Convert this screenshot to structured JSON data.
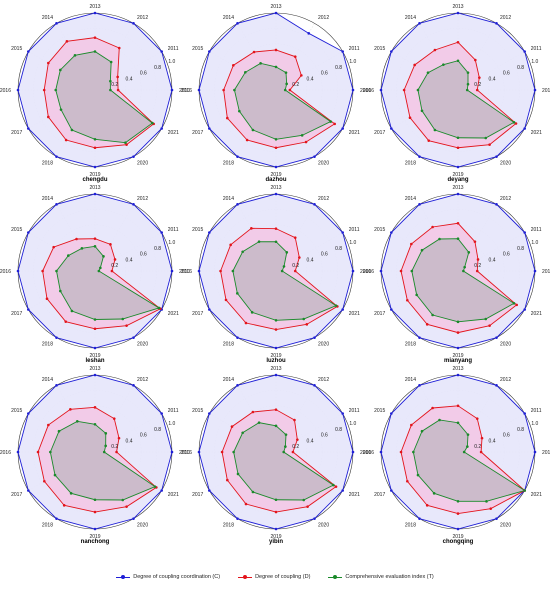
{
  "chart_data": [
    {
      "type": "radar",
      "title": "chengdu",
      "categories": [
        "2010",
        "2011",
        "2012",
        "2013",
        "2014",
        "2015",
        "2016",
        "2017",
        "2018",
        "2019",
        "2020",
        "2021"
      ],
      "rlim": [
        0,
        1.0
      ],
      "rticks": [
        "0.2",
        "0.4",
        "0.6",
        "0.8",
        "1.0"
      ],
      "series": [
        {
          "name": "Degree of coupling coordination (C)",
          "values": [
            1.0,
            1.0,
            1.0,
            1.0,
            1.0,
            1.0,
            1.0,
            1.0,
            1.0,
            1.0,
            1.0,
            1.0
          ]
        },
        {
          "name": "Degree of coupling (D)",
          "values": [
            0.3,
            0.34,
            0.63,
            0.68,
            0.73,
            0.7,
            0.66,
            0.7,
            0.75,
            0.75,
            0.82,
            0.88
          ]
        },
        {
          "name": "Comprehensive evaluation index (T)",
          "values": [
            0.2,
            0.23,
            0.42,
            0.5,
            0.52,
            0.52,
            0.51,
            0.51,
            0.6,
            0.64,
            0.79,
            0.86
          ]
        }
      ]
    },
    {
      "type": "radar",
      "title": "dazhou",
      "categories": [
        "2010",
        "2011",
        "2012",
        "2013",
        "2014",
        "2015",
        "2016",
        "2017",
        "2018",
        "2019",
        "2020",
        "2021"
      ],
      "rlim": [
        0,
        1.0
      ],
      "rticks": [
        "0.2",
        "0.4",
        "0.6",
        "0.8",
        "1.0"
      ],
      "series": [
        {
          "name": "Degree of coupling coordination (C)",
          "values": [
            1.0,
            1.0,
            0.85,
            1.0,
            1.0,
            1.0,
            1.0,
            1.0,
            1.0,
            1.0,
            1.0,
            1.0
          ]
        },
        {
          "name": "Degree of coupling (D)",
          "values": [
            0.18,
            0.38,
            0.5,
            0.52,
            0.57,
            0.64,
            0.68,
            0.73,
            0.75,
            0.75,
            0.78,
            0.88
          ]
        },
        {
          "name": "Comprehensive evaluation index (T)",
          "values": [
            0.12,
            0.16,
            0.26,
            0.3,
            0.4,
            0.46,
            0.54,
            0.55,
            0.6,
            0.64,
            0.68,
            0.82
          ]
        }
      ]
    },
    {
      "type": "radar",
      "title": "deyang",
      "categories": [
        "2010",
        "2011",
        "2012",
        "2013",
        "2014",
        "2015",
        "2016",
        "2017",
        "2018",
        "2019",
        "2020",
        "2021"
      ],
      "rlim": [
        0,
        1.0
      ],
      "rticks": [
        "0.2",
        "0.4",
        "0.6",
        "0.8",
        "1.0"
      ],
      "series": [
        {
          "name": "Degree of coupling coordination (C)",
          "values": [
            1.0,
            1.0,
            1.0,
            1.0,
            1.0,
            1.0,
            1.0,
            1.0,
            1.0,
            1.0,
            1.0,
            1.0
          ]
        },
        {
          "name": "Degree of coupling (D)",
          "values": [
            0.25,
            0.32,
            0.45,
            0.62,
            0.6,
            0.65,
            0.7,
            0.72,
            0.76,
            0.75,
            0.82,
            0.87
          ]
        },
        {
          "name": "Comprehensive evaluation index (T)",
          "values": [
            0.12,
            0.15,
            0.26,
            0.38,
            0.38,
            0.45,
            0.52,
            0.54,
            0.6,
            0.62,
            0.72,
            0.84
          ]
        }
      ]
    },
    {
      "type": "radar",
      "title": "leshan",
      "categories": [
        "2010",
        "2011",
        "2012",
        "2013",
        "2014",
        "2015",
        "2016",
        "2017",
        "2018",
        "2019",
        "2020",
        "2021"
      ],
      "rlim": [
        0,
        1.0
      ],
      "rticks": [
        "0.2",
        "0.4",
        "0.6",
        "0.8",
        "1.0"
      ],
      "series": [
        {
          "name": "Degree of coupling coordination (C)",
          "values": [
            1.0,
            1.0,
            1.0,
            1.0,
            1.0,
            1.0,
            1.0,
            1.0,
            1.0,
            1.0,
            1.0,
            1.0
          ]
        },
        {
          "name": "Degree of coupling (D)",
          "values": [
            0.22,
            0.3,
            0.4,
            0.42,
            0.48,
            0.62,
            0.68,
            0.72,
            0.76,
            0.75,
            0.82,
            0.98
          ]
        },
        {
          "name": "Comprehensive evaluation index (T)",
          "values": [
            0.05,
            0.08,
            0.22,
            0.32,
            0.34,
            0.4,
            0.5,
            0.52,
            0.6,
            0.63,
            0.72,
            0.96
          ]
        }
      ]
    },
    {
      "type": "radar",
      "title": "luzhou",
      "categories": [
        "2010",
        "2011",
        "2012",
        "2013",
        "2014",
        "2015",
        "2016",
        "2017",
        "2018",
        "2019",
        "2020",
        "2021"
      ],
      "rlim": [
        0,
        1.0
      ],
      "rticks": [
        "0.2",
        "0.4",
        "0.6",
        "0.8",
        "1.0"
      ],
      "series": [
        {
          "name": "Degree of coupling coordination (C)",
          "values": [
            1.0,
            1.0,
            1.0,
            1.0,
            1.0,
            1.0,
            1.0,
            1.0,
            1.0,
            1.0,
            1.0,
            1.0
          ]
        },
        {
          "name": "Degree of coupling (D)",
          "values": [
            0.25,
            0.35,
            0.5,
            0.55,
            0.64,
            0.68,
            0.72,
            0.75,
            0.78,
            0.76,
            0.8,
            0.92
          ]
        },
        {
          "name": "Comprehensive evaluation index (T)",
          "values": [
            0.08,
            0.12,
            0.28,
            0.38,
            0.44,
            0.5,
            0.56,
            0.58,
            0.62,
            0.64,
            0.72,
            0.9
          ]
        }
      ]
    },
    {
      "type": "radar",
      "title": "mianyang",
      "categories": [
        "2010",
        "2011",
        "2012",
        "2013",
        "2014",
        "2015",
        "2016",
        "2017",
        "2018",
        "2019",
        "2020",
        "2021"
      ],
      "rlim": [
        0,
        1.0
      ],
      "rticks": [
        "0.2",
        "0.4",
        "0.6",
        "0.8",
        "1.0"
      ],
      "series": [
        {
          "name": "Degree of coupling coordination (C)",
          "values": [
            1.0,
            1.0,
            1.0,
            1.0,
            1.0,
            1.0,
            1.0,
            1.0,
            1.0,
            1.0,
            1.0,
            1.0
          ]
        },
        {
          "name": "Degree of coupling (D)",
          "values": [
            0.25,
            0.3,
            0.44,
            0.62,
            0.66,
            0.7,
            0.74,
            0.76,
            0.8,
            0.8,
            0.82,
            0.88
          ]
        },
        {
          "name": "Comprehensive evaluation index (T)",
          "values": [
            0.07,
            0.1,
            0.28,
            0.42,
            0.48,
            0.54,
            0.6,
            0.62,
            0.66,
            0.66,
            0.72,
            0.84
          ]
        }
      ]
    },
    {
      "type": "radar",
      "title": "nanchong",
      "categories": [
        "2010",
        "2011",
        "2012",
        "2013",
        "2014",
        "2015",
        "2016",
        "2017",
        "2018",
        "2019",
        "2020",
        "2021"
      ],
      "rlim": [
        0,
        1.0
      ],
      "rticks": [
        "0.2",
        "0.4",
        "0.6",
        "0.8",
        "1.0"
      ],
      "series": [
        {
          "name": "Degree of coupling coordination (C)",
          "values": [
            1.0,
            1.0,
            1.0,
            1.0,
            1.0,
            1.0,
            1.0,
            1.0,
            1.0,
            1.0,
            1.0,
            1.0
          ]
        },
        {
          "name": "Degree of coupling (D)",
          "values": [
            0.28,
            0.36,
            0.5,
            0.58,
            0.64,
            0.7,
            0.74,
            0.76,
            0.8,
            0.78,
            0.82,
            0.92
          ]
        },
        {
          "name": "Comprehensive evaluation index (T)",
          "values": [
            0.12,
            0.16,
            0.28,
            0.36,
            0.46,
            0.54,
            0.58,
            0.6,
            0.62,
            0.62,
            0.72,
            0.9
          ]
        }
      ]
    },
    {
      "type": "radar",
      "title": "yibin",
      "categories": [
        "2010",
        "2011",
        "2012",
        "2013",
        "2014",
        "2015",
        "2016",
        "2017",
        "2018",
        "2019",
        "2020",
        "2021"
      ],
      "rlim": [
        0,
        1.0
      ],
      "rticks": [
        "0.2",
        "0.4",
        "0.6",
        "0.8",
        "1.0"
      ],
      "series": [
        {
          "name": "Degree of coupling coordination (C)",
          "values": [
            1.0,
            1.0,
            1.0,
            1.0,
            1.0,
            1.0,
            1.0,
            1.0,
            1.0,
            1.0,
            1.0,
            1.0
          ]
        },
        {
          "name": "Degree of coupling (D)",
          "values": [
            0.22,
            0.32,
            0.48,
            0.55,
            0.6,
            0.66,
            0.7,
            0.73,
            0.78,
            0.78,
            0.82,
            0.9
          ]
        },
        {
          "name": "Comprehensive evaluation index (T)",
          "values": [
            0.1,
            0.14,
            0.26,
            0.34,
            0.44,
            0.5,
            0.55,
            0.57,
            0.6,
            0.62,
            0.72,
            0.86
          ]
        }
      ]
    },
    {
      "type": "radar",
      "title": "chongqing",
      "categories": [
        "2010",
        "2011",
        "2012",
        "2013",
        "2014",
        "2015",
        "2016",
        "2017",
        "2018",
        "2019",
        "2020",
        "2021"
      ],
      "rlim": [
        0,
        1.0
      ],
      "rticks": [
        "0.2",
        "0.4",
        "0.6",
        "0.8",
        "1.0"
      ],
      "series": [
        {
          "name": "Degree of coupling coordination (C)",
          "values": [
            1.0,
            1.0,
            1.0,
            1.0,
            1.0,
            1.0,
            1.0,
            1.0,
            1.0,
            1.0,
            1.0,
            1.0
          ]
        },
        {
          "name": "Degree of coupling (D)",
          "values": [
            0.3,
            0.36,
            0.5,
            0.6,
            0.66,
            0.7,
            0.74,
            0.76,
            0.8,
            0.8,
            0.85,
            1.0
          ]
        },
        {
          "name": "Comprehensive evaluation index (T)",
          "values": [
            0.08,
            0.14,
            0.26,
            0.38,
            0.48,
            0.54,
            0.58,
            0.6,
            0.62,
            0.64,
            0.74,
            1.0
          ]
        }
      ]
    }
  ],
  "legend": {
    "items": [
      {
        "label": "Degree of coupling coordination (C)",
        "color": "#1f1fd6"
      },
      {
        "label": "Degree of coupling (D)",
        "color": "#e3141b"
      },
      {
        "label": "Comprehensive evaluation index (T)",
        "color": "#1a8a2a"
      }
    ]
  },
  "colors": {
    "C_fill": "#e6e6fb",
    "D_fill": "#f3c6e4",
    "T_fill": "#c6b9c5",
    "C_line": "#1f1fd6",
    "D_line": "#e3141b",
    "T_line": "#1a8a2a"
  }
}
